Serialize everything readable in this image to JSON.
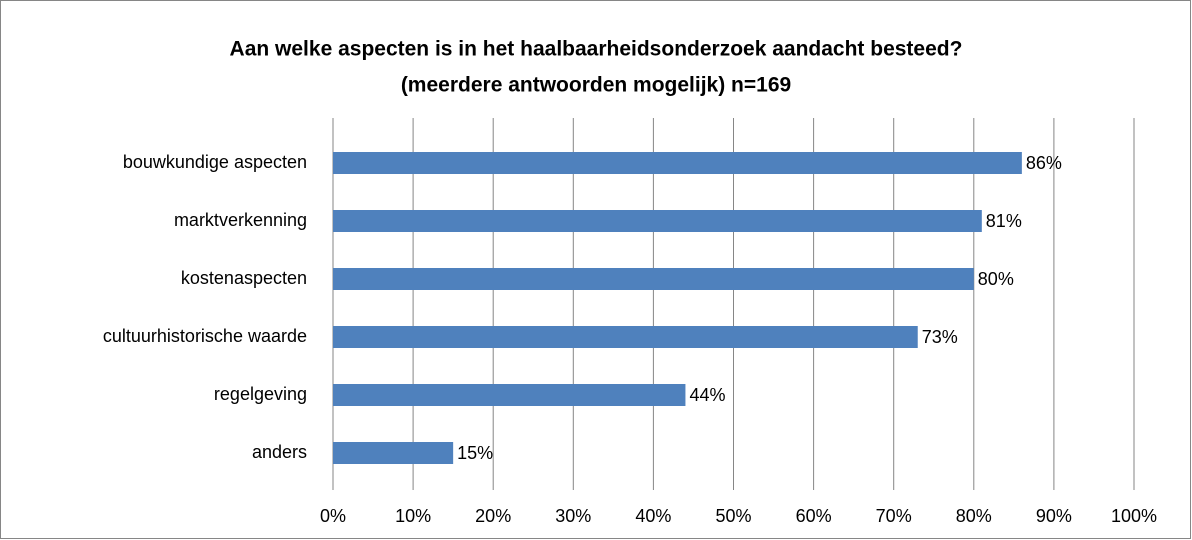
{
  "chart_data": {
    "type": "hbar",
    "title": [
      "Aan welke aspecten is in het haalbaarheidsonderzoek aandacht besteed?",
      "(meerdere antwoorden mogelijk) n=169"
    ],
    "categories": [
      "bouwkundige aspecten",
      "marktverkenning",
      "kostenaspecten",
      "cultuurhistorische waarde",
      "regelgeving",
      "anders"
    ],
    "values": [
      86,
      81,
      80,
      73,
      44,
      15
    ],
    "value_labels": [
      "86%",
      "81%",
      "80%",
      "73%",
      "44%",
      "15%"
    ],
    "color": "#4f81bd",
    "xlim": [
      0,
      100
    ],
    "xticks": [
      {
        "value": 0,
        "label": "0%"
      },
      {
        "value": 10,
        "label": "10%"
      },
      {
        "value": 20,
        "label": "20%"
      },
      {
        "value": 30,
        "label": "30%"
      },
      {
        "value": 40,
        "label": "40%"
      },
      {
        "value": 50,
        "label": "50%"
      },
      {
        "value": 60,
        "label": "60%"
      },
      {
        "value": 70,
        "label": "70%"
      },
      {
        "value": 80,
        "label": "80%"
      },
      {
        "value": 90,
        "label": "90%"
      },
      {
        "value": 100,
        "label": "100%"
      }
    ],
    "grid": true
  }
}
